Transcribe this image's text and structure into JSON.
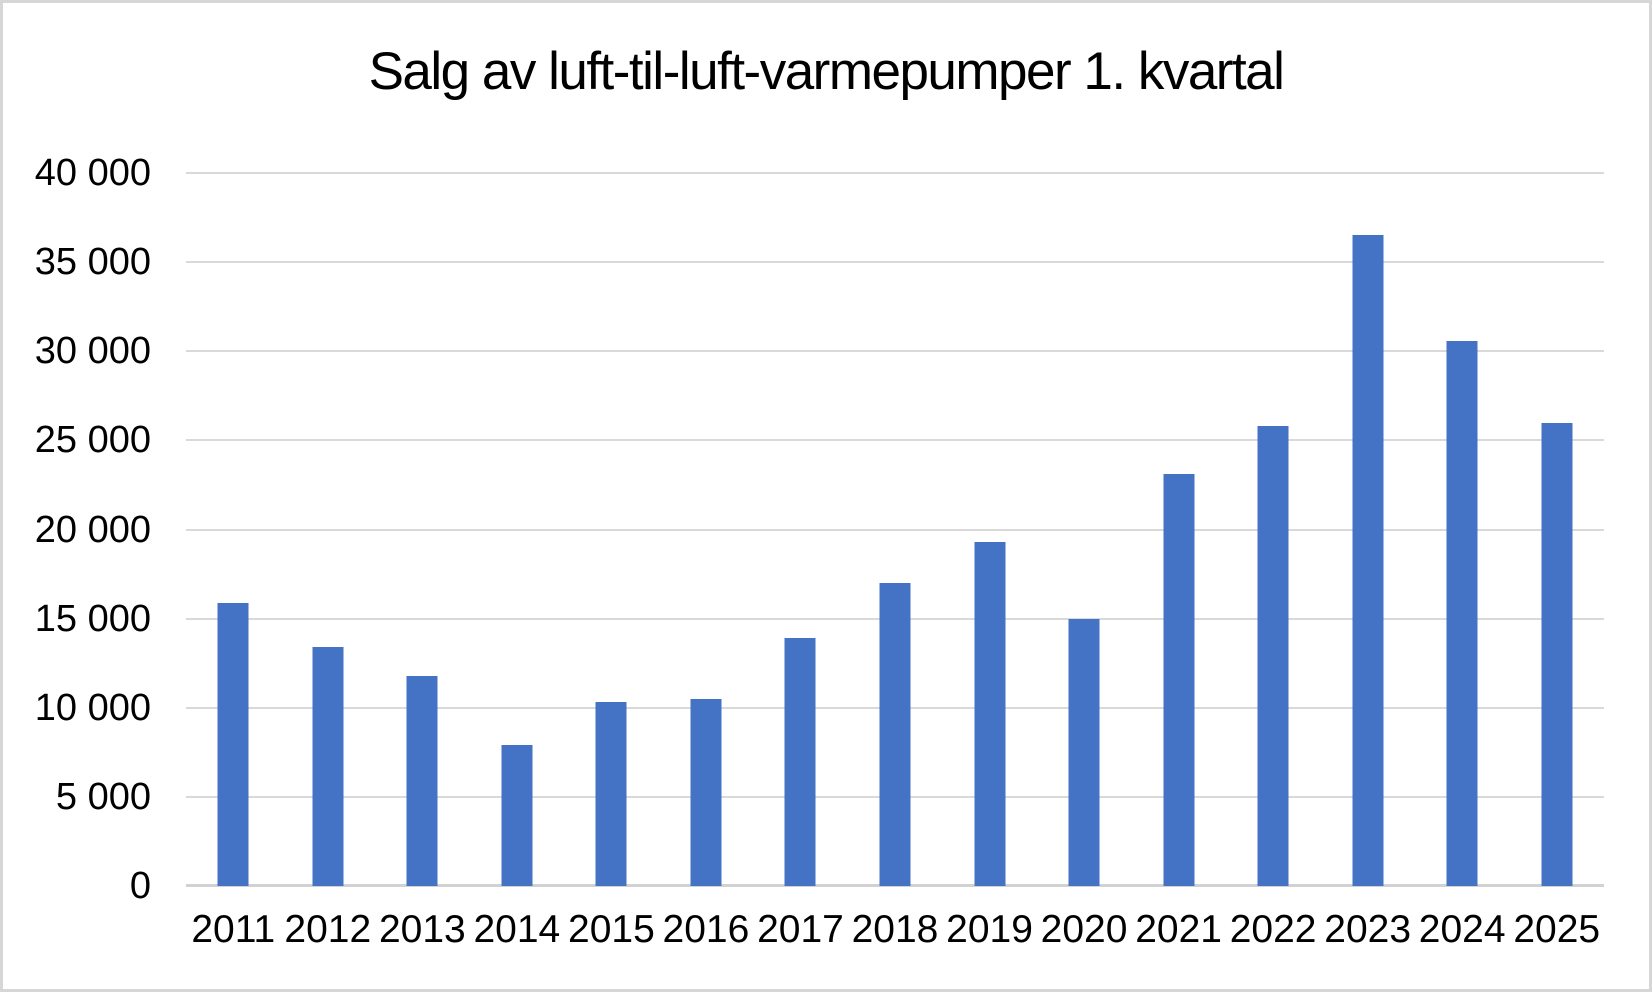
{
  "chart_data": {
    "type": "bar",
    "title": "Salg av luft-til-luft-varmepumper 1. kvartal",
    "categories": [
      "2011",
      "2012",
      "2013",
      "2014",
      "2015",
      "2016",
      "2017",
      "2018",
      "2019",
      "2020",
      "2021",
      "2022",
      "2023",
      "2024",
      "2025"
    ],
    "values": [
      15900,
      13400,
      11800,
      7900,
      10300,
      10500,
      13900,
      17000,
      19300,
      15000,
      23100,
      25800,
      36500,
      30600,
      26000
    ],
    "xlabel": "",
    "ylabel": "",
    "ylim": [
      0,
      40000
    ],
    "ytick_interval": 5000,
    "ytick_labels": [
      "0",
      "5 000",
      "10 000",
      "15 000",
      "20 000",
      "25 000",
      "30 000",
      "35 000",
      "40 000"
    ],
    "grid": true,
    "legend_position": "none",
    "bar_color": "#4472c4",
    "gridline_color": "#d9d9d9",
    "axis_line_color": "#d2d2d2",
    "frame_border_color": "#d6d6d6",
    "text_color": "#000000",
    "background_color": "#ffffff"
  }
}
